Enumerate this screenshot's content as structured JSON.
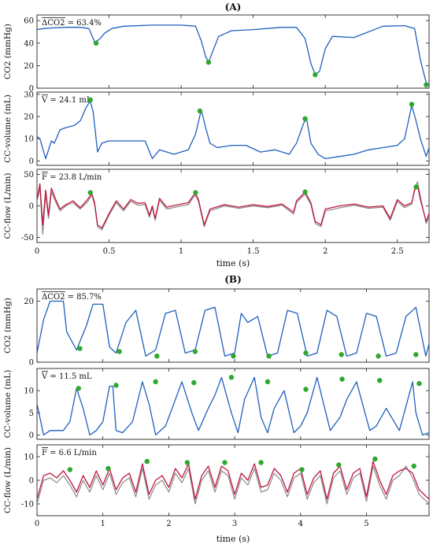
{
  "figure": {
    "panels": [
      {
        "label": "(A)",
        "xlabel": "time (s)",
        "x_ticks": [
          0,
          0.5,
          1,
          1.5,
          2,
          2.5
        ],
        "x_tick_labels": [
          "0",
          "0.5",
          "1",
          "1.5",
          "2",
          "2.5"
        ],
        "xlim": [
          0,
          2.72
        ],
        "rows": [
          {
            "ylabel": "CO2 (mmHg)",
            "ylim": [
              0,
              65
            ],
            "y_ticks": [
              0,
              20,
              40,
              60
            ],
            "y_tick_labels": [
              "0",
              "20",
              "40",
              "60"
            ],
            "annotation": "ΔCO2 = 63.4%",
            "kind": "co2"
          },
          {
            "ylabel": "CC-volume (mL)",
            "ylim": [
              -2,
              31
            ],
            "y_ticks": [
              0,
              10,
              20,
              30
            ],
            "y_tick_labels": [
              "0",
              "10",
              "20",
              "30"
            ],
            "annotation": "V = 24.1 mL",
            "kind": "volume"
          },
          {
            "ylabel": "CC-flow (L/min)",
            "ylim": [
              -58,
              58
            ],
            "y_ticks": [
              -50,
              0,
              50
            ],
            "y_tick_labels": [
              "-50",
              "0",
              "50"
            ],
            "annotation": "F = 23.8 L/min",
            "kind": "flow"
          }
        ]
      },
      {
        "label": "(B)",
        "xlabel": "time (s)",
        "x_ticks": [
          0,
          1,
          2,
          3,
          4,
          5
        ],
        "x_tick_labels": [
          "0",
          "1",
          "2",
          "3",
          "4",
          "5"
        ],
        "xlim": [
          0,
          5.95
        ],
        "rows": [
          {
            "ylabel": "CO2 (mmHg)",
            "ylim": [
              0,
              24
            ],
            "y_ticks": [
              0,
              20
            ],
            "y_tick_labels": [
              "0",
              "20"
            ],
            "annotation": "ΔCO2 = 85.7%",
            "kind": "co2"
          },
          {
            "ylabel": "CC-volume (mL)",
            "ylim": [
              -1,
              15
            ],
            "y_ticks": [
              0,
              5,
              10
            ],
            "y_tick_labels": [
              "0",
              "5",
              "10"
            ],
            "annotation": "V = 11.5 mL",
            "kind": "volume"
          },
          {
            "ylabel": "CC-flow (L/min)",
            "ylim": [
              -15,
              15
            ],
            "y_ticks": [
              -10,
              0,
              10
            ],
            "y_tick_labels": [
              "-10",
              "0",
              "10"
            ],
            "annotation": "F = 6.6 L/min",
            "kind": "flow"
          }
        ]
      }
    ]
  },
  "colors": {
    "co2": "#1f5fbf",
    "volume": "#1f5fbf",
    "flow": "#c0163f",
    "flow_ref": "#8a8a8a",
    "marker": "#2ea82e"
  },
  "chart_data": [
    {
      "type": "line",
      "panel": "(A)",
      "ylabel": "CO2 (mmHg)",
      "xlabel": "time (s)",
      "ylim": [
        0,
        65
      ],
      "xlim": [
        0,
        2.72
      ],
      "annotation": "ΔCO2 = 63.4%",
      "x": [
        0,
        0.05,
        0.1,
        0.2,
        0.3,
        0.36,
        0.38,
        0.4,
        0.43,
        0.47,
        0.52,
        0.6,
        0.8,
        1.0,
        1.1,
        1.14,
        1.17,
        1.19,
        1.22,
        1.26,
        1.35,
        1.5,
        1.7,
        1.8,
        1.86,
        1.9,
        1.93,
        1.96,
        2.0,
        2.05,
        2.2,
        2.4,
        2.55,
        2.62,
        2.66,
        2.7,
        2.72
      ],
      "values": [
        52,
        53,
        53.5,
        54,
        54,
        53,
        47,
        41,
        43,
        49,
        53,
        55,
        56,
        56,
        55,
        42,
        28,
        23,
        33,
        46,
        51,
        52,
        54,
        54,
        44,
        22,
        12,
        15,
        35,
        46,
        45,
        55,
        55.5,
        53,
        25,
        5,
        3
      ],
      "markers": {
        "x": [
          0.41,
          1.19,
          1.93,
          2.7
        ],
        "y": [
          40,
          23,
          12,
          3
        ]
      }
    },
    {
      "type": "line",
      "panel": "(A)",
      "ylabel": "CC-volume (mL)",
      "xlabel": "time (s)",
      "ylim": [
        -2,
        31
      ],
      "xlim": [
        0,
        2.72
      ],
      "annotation": "V = 24.1 mL",
      "x": [
        0,
        0.02,
        0.06,
        0.1,
        0.12,
        0.16,
        0.2,
        0.26,
        0.3,
        0.34,
        0.37,
        0.39,
        0.42,
        0.45,
        0.5,
        0.6,
        0.7,
        0.75,
        0.8,
        0.85,
        0.95,
        1.05,
        1.1,
        1.14,
        1.17,
        1.2,
        1.25,
        1.35,
        1.45,
        1.55,
        1.65,
        1.75,
        1.8,
        1.85,
        1.87,
        1.9,
        1.95,
        2.0,
        2.1,
        2.2,
        2.3,
        2.4,
        2.5,
        2.55,
        2.6,
        2.63,
        2.66,
        2.7,
        2.72
      ],
      "values": [
        11,
        10,
        1,
        9,
        8,
        14,
        15,
        16,
        18,
        24,
        27,
        22,
        4,
        8,
        9,
        9,
        9,
        9,
        1,
        5,
        3,
        5,
        12,
        23,
        15,
        8,
        6,
        7,
        7,
        4,
        5,
        3,
        8,
        17,
        19,
        8,
        3,
        1,
        2,
        3,
        5,
        6,
        7,
        10,
        25,
        18,
        10,
        2,
        6
      ],
      "markers": {
        "x": [
          0.37,
          1.13,
          1.86,
          2.6
        ],
        "y": [
          27.5,
          22.5,
          19,
          25.5
        ]
      }
    },
    {
      "type": "line",
      "panel": "(A)",
      "ylabel": "CC-flow (L/min)",
      "xlabel": "time (s)",
      "ylim": [
        -58,
        58
      ],
      "xlim": [
        0,
        2.72
      ],
      "annotation": "F = 23.8 L/min",
      "series": [
        {
          "x": [
            0,
            0.02,
            0.04,
            0.06,
            0.08,
            0.1,
            0.13,
            0.16,
            0.2,
            0.25,
            0.3,
            0.35,
            0.38,
            0.4,
            0.42,
            0.45,
            0.5,
            0.55,
            0.6,
            0.65,
            0.7,
            0.75,
            0.78,
            0.8,
            0.82,
            0.85,
            0.9,
            1.0,
            1.05,
            1.08,
            1.1,
            1.12,
            1.14,
            1.16,
            1.2,
            1.3,
            1.4,
            1.5,
            1.6,
            1.7,
            1.78,
            1.8,
            1.83,
            1.86,
            1.9,
            1.93,
            1.97,
            2.0,
            2.1,
            2.2,
            2.3,
            2.4,
            2.45,
            2.5,
            2.55,
            2.6,
            2.62,
            2.64,
            2.66,
            2.7,
            2.72
          ],
          "values": [
            10,
            35,
            -30,
            25,
            -15,
            28,
            10,
            -5,
            2,
            8,
            -3,
            10,
            20,
            5,
            -30,
            -35,
            -12,
            8,
            -5,
            10,
            4,
            5,
            -15,
            0,
            -20,
            12,
            -2,
            3,
            5,
            15,
            20,
            10,
            -10,
            -30,
            -5,
            2,
            -2,
            2,
            -1,
            3,
            -10,
            8,
            15,
            22,
            5,
            -25,
            -30,
            -5,
            0,
            3,
            -2,
            0,
            -20,
            10,
            0,
            5,
            25,
            32,
            10,
            -25,
            -12
          ]
        },
        {
          "x": [
            0,
            0.02,
            0.04,
            0.06,
            0.08,
            0.1,
            0.13,
            0.16,
            0.2,
            0.25,
            0.3,
            0.35,
            0.38,
            0.4,
            0.42,
            0.45,
            0.5,
            0.55,
            0.6,
            0.65,
            0.7,
            0.75,
            0.78,
            0.8,
            0.82,
            0.85,
            0.9,
            1.0,
            1.05,
            1.08,
            1.1,
            1.12,
            1.14,
            1.16,
            1.2,
            1.3,
            1.4,
            1.5,
            1.6,
            1.7,
            1.78,
            1.8,
            1.83,
            1.86,
            1.9,
            1.93,
            1.97,
            2.0,
            2.1,
            2.2,
            2.3,
            2.4,
            2.45,
            2.5,
            2.55,
            2.6,
            2.62,
            2.64,
            2.66,
            2.7,
            2.72
          ],
          "values": [
            8,
            28,
            -45,
            18,
            -20,
            22,
            6,
            -8,
            0,
            5,
            -5,
            6,
            17,
            2,
            -33,
            -38,
            -15,
            5,
            -8,
            7,
            1,
            2,
            -18,
            -3,
            -23,
            9,
            -5,
            0,
            2,
            12,
            17,
            7,
            -13,
            -33,
            -8,
            0,
            -4,
            0,
            -3,
            1,
            -13,
            5,
            12,
            19,
            2,
            -28,
            -33,
            -8,
            -3,
            1,
            -4,
            -2,
            -23,
            7,
            -3,
            3,
            28,
            38,
            15,
            -28,
            -16
          ]
        }
      ],
      "markers": {
        "x": [
          0.37,
          1.1,
          1.86,
          2.63
        ],
        "y": [
          21,
          21,
          22,
          30
        ]
      }
    },
    {
      "type": "line",
      "panel": "(B)",
      "ylabel": "CO2 (mmHg)",
      "xlabel": "time (s)",
      "ylim": [
        0,
        24
      ],
      "xlim": [
        0,
        5.95
      ],
      "annotation": "ΔCO2 = 85.7%",
      "x": [
        0,
        0.1,
        0.2,
        0.4,
        0.45,
        0.6,
        0.75,
        0.85,
        1.0,
        1.1,
        1.2,
        1.35,
        1.5,
        1.65,
        1.8,
        1.95,
        2.1,
        2.25,
        2.4,
        2.55,
        2.7,
        2.85,
        3.0,
        3.1,
        3.2,
        3.35,
        3.5,
        3.65,
        3.8,
        3.95,
        4.1,
        4.25,
        4.4,
        4.55,
        4.7,
        4.85,
        5.0,
        5.15,
        5.3,
        5.45,
        5.6,
        5.75,
        5.9,
        5.95
      ],
      "values": [
        3,
        14,
        20,
        20,
        10,
        4,
        12,
        19,
        19,
        5,
        3,
        13,
        17,
        2,
        4,
        16,
        17,
        3,
        4,
        17,
        18,
        2,
        3,
        16,
        13,
        15,
        2,
        3,
        17,
        16,
        2,
        3,
        17,
        15,
        2,
        3,
        16,
        15,
        2,
        3,
        15,
        18,
        2,
        6
      ],
      "markers": {
        "x": [
          0.65,
          1.25,
          1.82,
          2.4,
          2.98,
          3.52,
          4.08,
          4.62,
          5.18,
          5.75
        ],
        "y": [
          4.5,
          3.5,
          2,
          3.5,
          2,
          2,
          3,
          2.5,
          2,
          2.5
        ]
      }
    },
    {
      "type": "line",
      "panel": "(B)",
      "ylabel": "CC-volume (mL)",
      "xlabel": "time (s)",
      "ylim": [
        -1,
        15
      ],
      "xlim": [
        0,
        5.95
      ],
      "annotation": "V = 11.5 mL",
      "x": [
        0,
        0.1,
        0.2,
        0.4,
        0.5,
        0.6,
        0.7,
        0.8,
        0.9,
        1.0,
        1.1,
        1.15,
        1.2,
        1.3,
        1.45,
        1.6,
        1.7,
        1.8,
        1.95,
        2.1,
        2.2,
        2.35,
        2.45,
        2.6,
        2.7,
        2.8,
        2.95,
        3.05,
        3.15,
        3.3,
        3.4,
        3.5,
        3.6,
        3.75,
        3.9,
        4.0,
        4.1,
        4.25,
        4.45,
        4.6,
        4.7,
        4.85,
        5.05,
        5.15,
        5.3,
        5.5,
        5.7,
        5.75,
        5.85,
        5.95
      ],
      "values": [
        7,
        0,
        1,
        1,
        3,
        10.5,
        6,
        0,
        1,
        3,
        11,
        11,
        1,
        0.5,
        3,
        12,
        7,
        0,
        2,
        8,
        12,
        5,
        1,
        6,
        9,
        13,
        5,
        0.5,
        8,
        13,
        4,
        0.5,
        6,
        10,
        0.5,
        2,
        5,
        13,
        1,
        4,
        8,
        12,
        1,
        2,
        6,
        1,
        12,
        5,
        0,
        0.5
      ],
      "markers": {
        "x": [
          0.63,
          1.2,
          1.8,
          2.38,
          2.95,
          3.5,
          4.08,
          4.63,
          5.2,
          5.8
        ],
        "y": [
          10.5,
          11.2,
          12,
          11.8,
          13,
          12,
          10.3,
          12.6,
          12.3,
          11.6
        ]
      }
    },
    {
      "type": "line",
      "panel": "(B)",
      "ylabel": "CC-flow (L/min)",
      "xlabel": "time (s)",
      "ylim": [
        -15,
        15
      ],
      "xlim": [
        0,
        5.95
      ],
      "annotation": "F = 6.6 L/min",
      "series": [
        {
          "x": [
            0,
            0.1,
            0.2,
            0.3,
            0.4,
            0.5,
            0.6,
            0.7,
            0.8,
            0.9,
            1.0,
            1.1,
            1.2,
            1.3,
            1.4,
            1.5,
            1.6,
            1.7,
            1.8,
            1.9,
            2.0,
            2.1,
            2.2,
            2.3,
            2.4,
            2.5,
            2.6,
            2.7,
            2.8,
            2.9,
            3.0,
            3.1,
            3.2,
            3.3,
            3.4,
            3.5,
            3.6,
            3.7,
            3.8,
            3.9,
            4.0,
            4.1,
            4.2,
            4.3,
            4.4,
            4.5,
            4.6,
            4.7,
            4.8,
            4.9,
            5.0,
            5.1,
            5.2,
            5.3,
            5.4,
            5.5,
            5.6,
            5.7,
            5.8,
            5.95
          ],
          "values": [
            -8,
            2,
            3,
            1,
            4,
            0,
            -5,
            2,
            -3,
            4,
            -2,
            5,
            -4,
            1,
            3,
            -5,
            7,
            -6,
            0,
            2,
            -3,
            5,
            1,
            7,
            -8,
            2,
            6,
            -3,
            6,
            4,
            -6,
            3,
            0,
            7,
            -3,
            -2,
            5,
            2,
            -5,
            3,
            5,
            -6,
            1,
            4,
            -8,
            3,
            6,
            -4,
            3,
            5,
            -7,
            8,
            0,
            -6,
            2,
            4,
            5,
            3,
            -4,
            -8
          ]
        },
        {
          "x": [
            0,
            0.1,
            0.2,
            0.3,
            0.4,
            0.5,
            0.6,
            0.7,
            0.8,
            0.9,
            1.0,
            1.1,
            1.2,
            1.3,
            1.4,
            1.5,
            1.6,
            1.7,
            1.8,
            1.9,
            2.0,
            2.1,
            2.2,
            2.3,
            2.4,
            2.5,
            2.6,
            2.7,
            2.8,
            2.9,
            3.0,
            3.1,
            3.2,
            3.3,
            3.4,
            3.5,
            3.6,
            3.7,
            3.8,
            3.9,
            4.0,
            4.1,
            4.2,
            4.3,
            4.4,
            4.5,
            4.6,
            4.7,
            4.8,
            4.9,
            5.0,
            5.1,
            5.2,
            5.3,
            5.4,
            5.5,
            5.6,
            5.7,
            5.8,
            5.95
          ],
          "values": [
            -10,
            0,
            1,
            -1,
            2,
            -2,
            -7,
            0,
            -5,
            2,
            -4,
            3,
            -6,
            -1,
            1,
            -7,
            5,
            -8,
            -2,
            0,
            -5,
            3,
            -1,
            5,
            -10,
            0,
            4,
            -5,
            4,
            2,
            -8,
            1,
            -2,
            5,
            -5,
            -4,
            3,
            0,
            -7,
            1,
            3,
            -8,
            -1,
            2,
            -10,
            1,
            4,
            -6,
            1,
            3,
            -9,
            6,
            -2,
            -8,
            0,
            2,
            6,
            1,
            -6,
            -10
          ]
        }
      ],
      "markers": {
        "x": [
          0.5,
          1.08,
          1.67,
          2.28,
          2.85,
          3.4,
          4.02,
          4.58,
          5.13,
          5.72
        ],
        "y": [
          4.5,
          5,
          8,
          7.5,
          7.5,
          7.5,
          4.5,
          6.5,
          9,
          6
        ]
      }
    }
  ]
}
